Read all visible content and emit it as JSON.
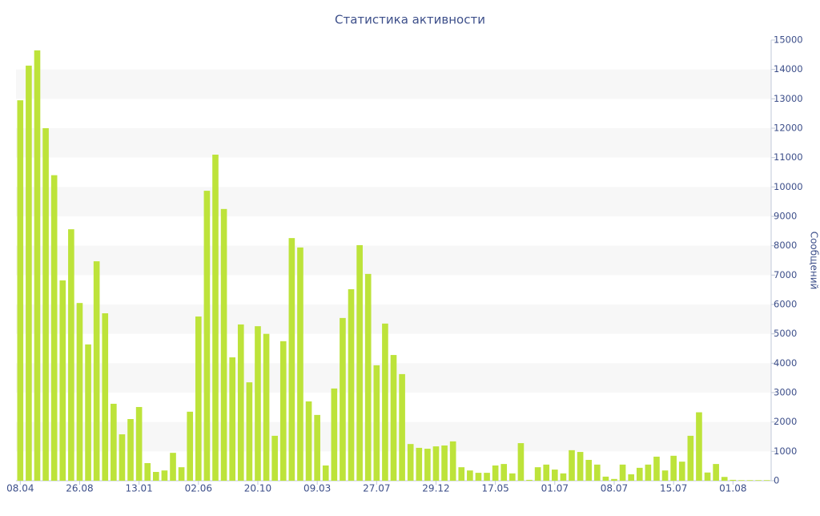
{
  "chart_data": {
    "type": "bar",
    "title": "Статистика активности",
    "y_axis_label": "Сообщений",
    "categories": [
      "08.04",
      null,
      null,
      null,
      null,
      null,
      null,
      "26.08",
      null,
      null,
      null,
      null,
      null,
      null,
      "13.01",
      null,
      null,
      null,
      null,
      null,
      null,
      "02.06",
      null,
      null,
      null,
      null,
      null,
      null,
      "20.10",
      null,
      null,
      null,
      null,
      null,
      null,
      "09.03",
      null,
      null,
      null,
      null,
      null,
      null,
      "27.07",
      null,
      null,
      null,
      null,
      null,
      null,
      "29.12",
      null,
      null,
      null,
      null,
      null,
      null,
      "17.05",
      null,
      null,
      null,
      null,
      null,
      null,
      "01.07",
      null,
      null,
      null,
      null,
      null,
      null,
      "08.07",
      null,
      null,
      null,
      null,
      null,
      null,
      "15.07",
      null,
      null,
      null,
      null,
      null,
      null,
      "01.08",
      null,
      null,
      null,
      null
    ],
    "values": [
      12950,
      14130,
      14650,
      12000,
      10400,
      6820,
      8560,
      6050,
      4640,
      7470,
      5700,
      2620,
      1580,
      2100,
      2510,
      600,
      300,
      350,
      950,
      460,
      2350,
      5590,
      9870,
      11100,
      9250,
      4200,
      5320,
      3350,
      5260,
      5000,
      1530,
      4750,
      8260,
      7940,
      2700,
      2240,
      520,
      3140,
      5540,
      6520,
      8020,
      7040,
      3930,
      5350,
      4280,
      3630,
      1250,
      1120,
      1090,
      1170,
      1200,
      1340,
      460,
      350,
      270,
      270,
      520,
      570,
      250,
      1280,
      30,
      460,
      550,
      380,
      250,
      1040,
      980,
      710,
      550,
      140,
      60,
      550,
      220,
      440,
      550,
      820,
      350,
      850,
      650,
      1530,
      2330,
      280,
      570,
      130,
      30,
      20,
      20,
      20,
      20
    ],
    "color": "#bde33a",
    "ylim": [
      0,
      15000
    ],
    "yticks": [
      0,
      1000,
      2000,
      3000,
      4000,
      5000,
      6000,
      7000,
      8000,
      9000,
      10000,
      11000,
      12000,
      13000,
      14000,
      15000
    ],
    "y_axis_side": "right",
    "grid": "bands"
  }
}
